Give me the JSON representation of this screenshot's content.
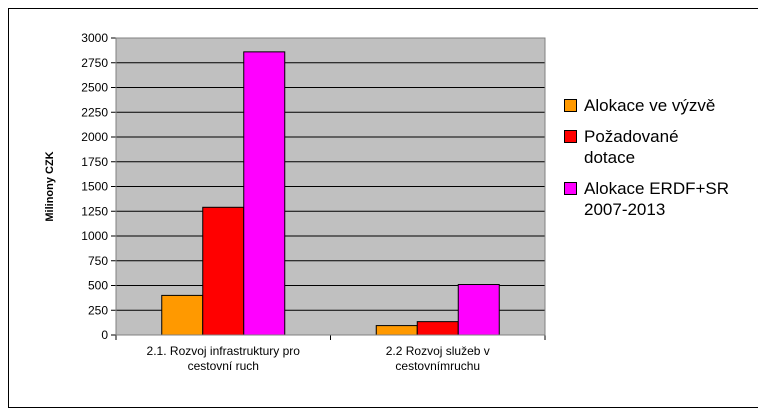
{
  "chart_data": {
    "type": "bar",
    "title": "",
    "xlabel": "",
    "ylabel": "Milinony CZK",
    "ylim": [
      0,
      3000
    ],
    "yticks": [
      0,
      250,
      500,
      750,
      1000,
      1250,
      1500,
      1750,
      2000,
      2250,
      2500,
      2750,
      3000
    ],
    "categories": [
      [
        "2.1. Rozvoj infrastruktury pro",
        "cestovní ruch"
      ],
      [
        "2.2 Rozvoj služeb v",
        "cestovnímruchu"
      ]
    ],
    "series": [
      {
        "name": "Alokace ve výzvě",
        "color": "#ff9900",
        "values": [
          400,
          95
        ]
      },
      {
        "name": "Požadované dotace",
        "color": "#ff0000",
        "values": [
          1290,
          135
        ]
      },
      {
        "name": "Alokace ERDF+SR 2007-2013",
        "color": "#ff00ff",
        "values": [
          2860,
          510
        ]
      }
    ],
    "plot_background": "#c0c0c0",
    "grid": true,
    "legend_position": "right"
  },
  "legend": {
    "items": [
      {
        "label_lines": [
          "Alokace ve výzvě"
        ],
        "color": "#ff9900"
      },
      {
        "label_lines": [
          "Požadované",
          "dotace"
        ],
        "color": "#ff0000"
      },
      {
        "label_lines": [
          "Alokace ERDF+SR",
          "2007-2013"
        ],
        "color": "#ff00ff"
      }
    ]
  }
}
